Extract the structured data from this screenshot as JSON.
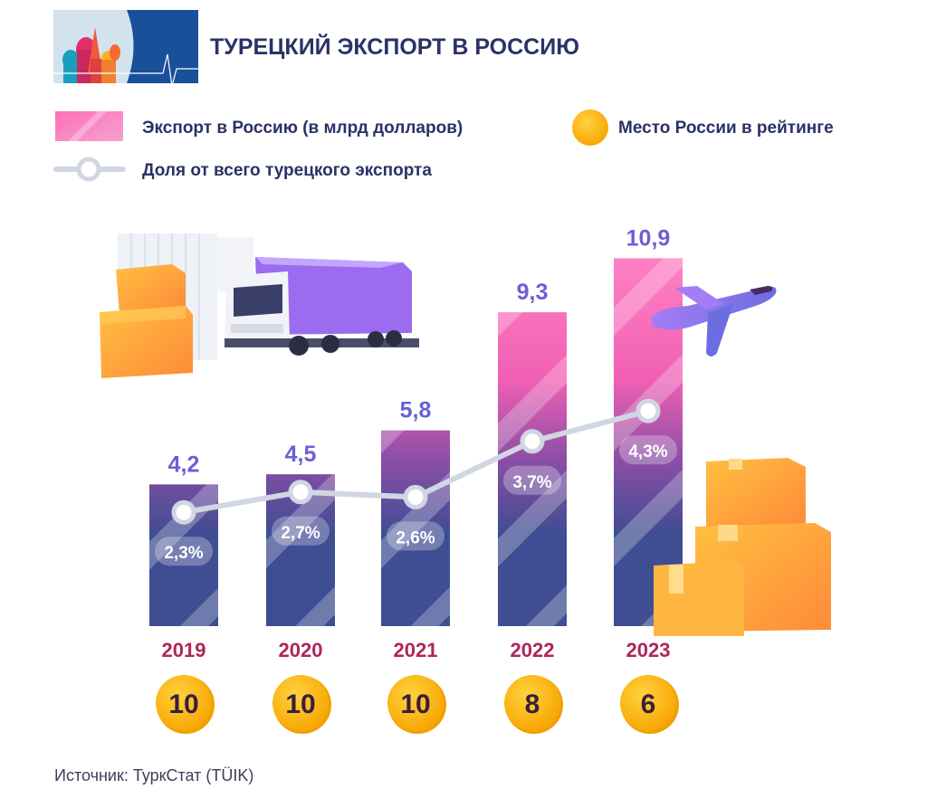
{
  "title": "ТУРЕЦКИЙ ЭКСПОРТ В РОССИЮ",
  "legend": {
    "bars": "Экспорт в Россию (в млрд долларов)",
    "coins": "Место России в рейтинге",
    "line": "Доля от всего турецкого экспорта"
  },
  "source": "Источник: ТуркСтат (TÜIK)",
  "colors": {
    "title": "#2a3266",
    "value_label": "#6a5fd6",
    "year_label": "#b0245a",
    "bar_top": "#ff7ac0",
    "bar_bottom": "#3f4d92",
    "line": "#d0d6e2",
    "coin": "#ffb81c",
    "box": "#ffa63a",
    "plane": "#8a6cf0",
    "truck": "#9b6cf0"
  },
  "chart_data": {
    "type": "bar",
    "categories": [
      "2019",
      "2020",
      "2021",
      "2022",
      "2023"
    ],
    "series": [
      {
        "name": "Экспорт в Россию (в млрд долларов)",
        "type": "bar",
        "values": [
          4.2,
          4.5,
          5.8,
          9.3,
          10.9
        ],
        "labels": [
          "4,2",
          "4,5",
          "5,8",
          "9,3",
          "10,9"
        ]
      },
      {
        "name": "Доля от всего турецкого экспорта",
        "type": "line",
        "values": [
          2.3,
          2.7,
          2.6,
          3.7,
          4.3
        ],
        "labels": [
          "2,3%",
          "2,7%",
          "2,6%",
          "3,7%",
          "4,3%"
        ]
      },
      {
        "name": "Место России в рейтинге",
        "type": "coin",
        "values": [
          10,
          10,
          10,
          8,
          6
        ],
        "labels": [
          "10",
          "10",
          "10",
          "8",
          "6"
        ]
      }
    ],
    "grid": false,
    "legend_position": "top"
  }
}
